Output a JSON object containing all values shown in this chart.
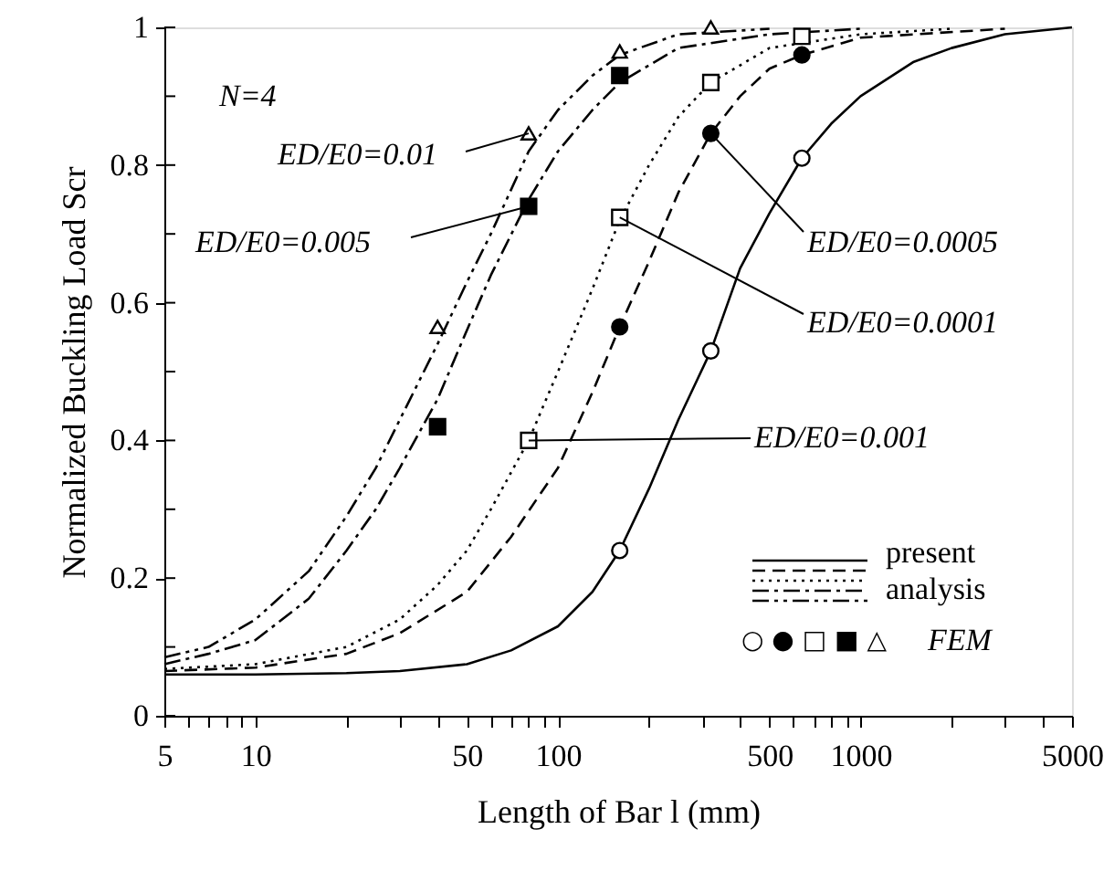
{
  "chart_data": {
    "type": "line",
    "xlabel": "Length of Bar l  (mm)",
    "ylabel": "Normalized Buckling Load Scr",
    "log": "x",
    "grid": false,
    "xlim": [
      5,
      5000
    ],
    "ylim": [
      0,
      1
    ],
    "xticks": [
      5,
      {
        "value": 6,
        "label": null
      },
      {
        "value": 7,
        "label": null
      },
      {
        "value": 8,
        "label": null
      },
      {
        "value": 9,
        "label": null
      },
      10,
      {
        "value": 20,
        "label": null
      },
      {
        "value": 30,
        "label": null
      },
      {
        "value": 40,
        "label": null
      },
      50,
      {
        "value": 60,
        "label": null
      },
      {
        "value": 70,
        "label": null
      },
      {
        "value": 80,
        "label": null
      },
      {
        "value": 90,
        "label": null
      },
      100,
      {
        "value": 200,
        "label": null
      },
      {
        "value": 300,
        "label": null
      },
      {
        "value": 400,
        "label": null
      },
      500,
      {
        "value": 600,
        "label": null
      },
      {
        "value": 700,
        "label": null
      },
      {
        "value": 800,
        "label": null
      },
      {
        "value": 900,
        "label": null
      },
      1000,
      {
        "value": 2000,
        "label": null
      },
      {
        "value": 3000,
        "label": null
      },
      {
        "value": 4000,
        "label": null
      },
      5000
    ],
    "yticks": [
      0,
      {
        "value": 0.1,
        "label": null
      },
      0.2,
      {
        "value": 0.3,
        "label": null
      },
      0.4,
      {
        "value": 0.5,
        "label": null
      },
      0.6,
      {
        "value": 0.7,
        "label": null
      },
      0.8,
      {
        "value": 0.9,
        "label": null
      },
      1
    ],
    "series": [
      {
        "color": "#000000",
        "line_style": "solid",
        "marker": "none",
        "x": [
          5,
          10,
          20,
          30,
          50,
          70,
          100,
          130,
          160,
          200,
          250,
          320,
          400,
          500,
          640,
          800,
          1000,
          1500,
          2000,
          3000,
          5000
        ],
        "values": [
          0.06,
          0.06,
          0.062,
          0.065,
          0.075,
          0.095,
          0.13,
          0.18,
          0.24,
          0.33,
          0.43,
          0.53,
          0.65,
          0.73,
          0.81,
          0.86,
          0.9,
          0.95,
          0.97,
          0.99,
          1.0
        ]
      },
      {
        "color": "#000000",
        "line_style": "dashed",
        "marker": "none",
        "x": [
          5,
          10,
          20,
          30,
          50,
          70,
          100,
          130,
          160,
          200,
          250,
          320,
          400,
          500,
          640,
          1000,
          3000
        ],
        "values": [
          0.065,
          0.07,
          0.09,
          0.12,
          0.18,
          0.26,
          0.36,
          0.47,
          0.565,
          0.66,
          0.76,
          0.846,
          0.9,
          0.94,
          0.96,
          0.985,
          0.998
        ]
      },
      {
        "color": "#000000",
        "line_style": "dotted",
        "marker": "none",
        "x": [
          5,
          10,
          20,
          30,
          40,
          50,
          60,
          80,
          100,
          130,
          160,
          200,
          250,
          320,
          500,
          1000,
          2000
        ],
        "values": [
          0.068,
          0.075,
          0.1,
          0.14,
          0.19,
          0.24,
          0.3,
          0.4,
          0.5,
          0.62,
          0.72,
          0.8,
          0.87,
          0.92,
          0.97,
          0.99,
          0.998
        ]
      },
      {
        "color": "#000000",
        "line_style": "dashdot",
        "marker": "none",
        "x": [
          5,
          7,
          10,
          15,
          20,
          25,
          30,
          40,
          50,
          60,
          80,
          100,
          130,
          160,
          250,
          500,
          1000
        ],
        "values": [
          0.075,
          0.09,
          0.11,
          0.17,
          0.24,
          0.3,
          0.36,
          0.46,
          0.56,
          0.64,
          0.75,
          0.82,
          0.88,
          0.92,
          0.97,
          0.99,
          0.998
        ]
      },
      {
        "color": "#000000",
        "line_style": "dashdotdot",
        "marker": "none",
        "x": [
          5,
          7,
          10,
          15,
          20,
          25,
          30,
          40,
          50,
          60,
          80,
          100,
          130,
          160,
          250,
          500
        ],
        "values": [
          0.085,
          0.1,
          0.14,
          0.21,
          0.29,
          0.36,
          0.43,
          0.54,
          0.63,
          0.7,
          0.82,
          0.88,
          0.93,
          0.96,
          0.99,
          0.998
        ]
      },
      {
        "type": "scatter",
        "color": "#ffffff",
        "marker": "circle",
        "x": [
          160,
          320,
          640
        ],
        "values": [
          0.24,
          0.53,
          0.81
        ]
      },
      {
        "type": "scatter",
        "color": "#000000",
        "marker": "circle",
        "x": [
          160,
          320,
          640
        ],
        "values": [
          0.565,
          0.846,
          0.96
        ]
      },
      {
        "type": "scatter",
        "color": "#ffffff",
        "marker": "square",
        "x": [
          80,
          160,
          320,
          640
        ],
        "values": [
          0.4,
          0.724,
          0.92,
          0.987
        ]
      },
      {
        "type": "scatter",
        "color": "#000000",
        "marker": "square",
        "x": [
          40,
          80,
          160
        ],
        "values": [
          0.42,
          0.74,
          0.93
        ]
      },
      {
        "type": "scatter",
        "color": "#ffffff",
        "marker": "triangle",
        "x": [
          40,
          80,
          160,
          320
        ],
        "values": [
          0.565,
          0.846,
          0.965,
          1.0
        ]
      }
    ],
    "annotations": [
      {
        "text": "ED/E0=0.01",
        "x": 80,
        "y": 0.846
      },
      {
        "text": "ED/E0=0.005",
        "x": 80,
        "y": 0.74
      },
      {
        "text": "ED/E0=0.0005",
        "x": 320,
        "y": 0.846
      },
      {
        "text": "ED/E0=0.0001",
        "x": 160,
        "y": 0.724
      },
      {
        "text": "ED/E0=0.001",
        "x": 80,
        "y": 0.4
      },
      "N=4",
      "present analysis",
      "○ ● □ ■ △",
      "FEM"
    ]
  }
}
